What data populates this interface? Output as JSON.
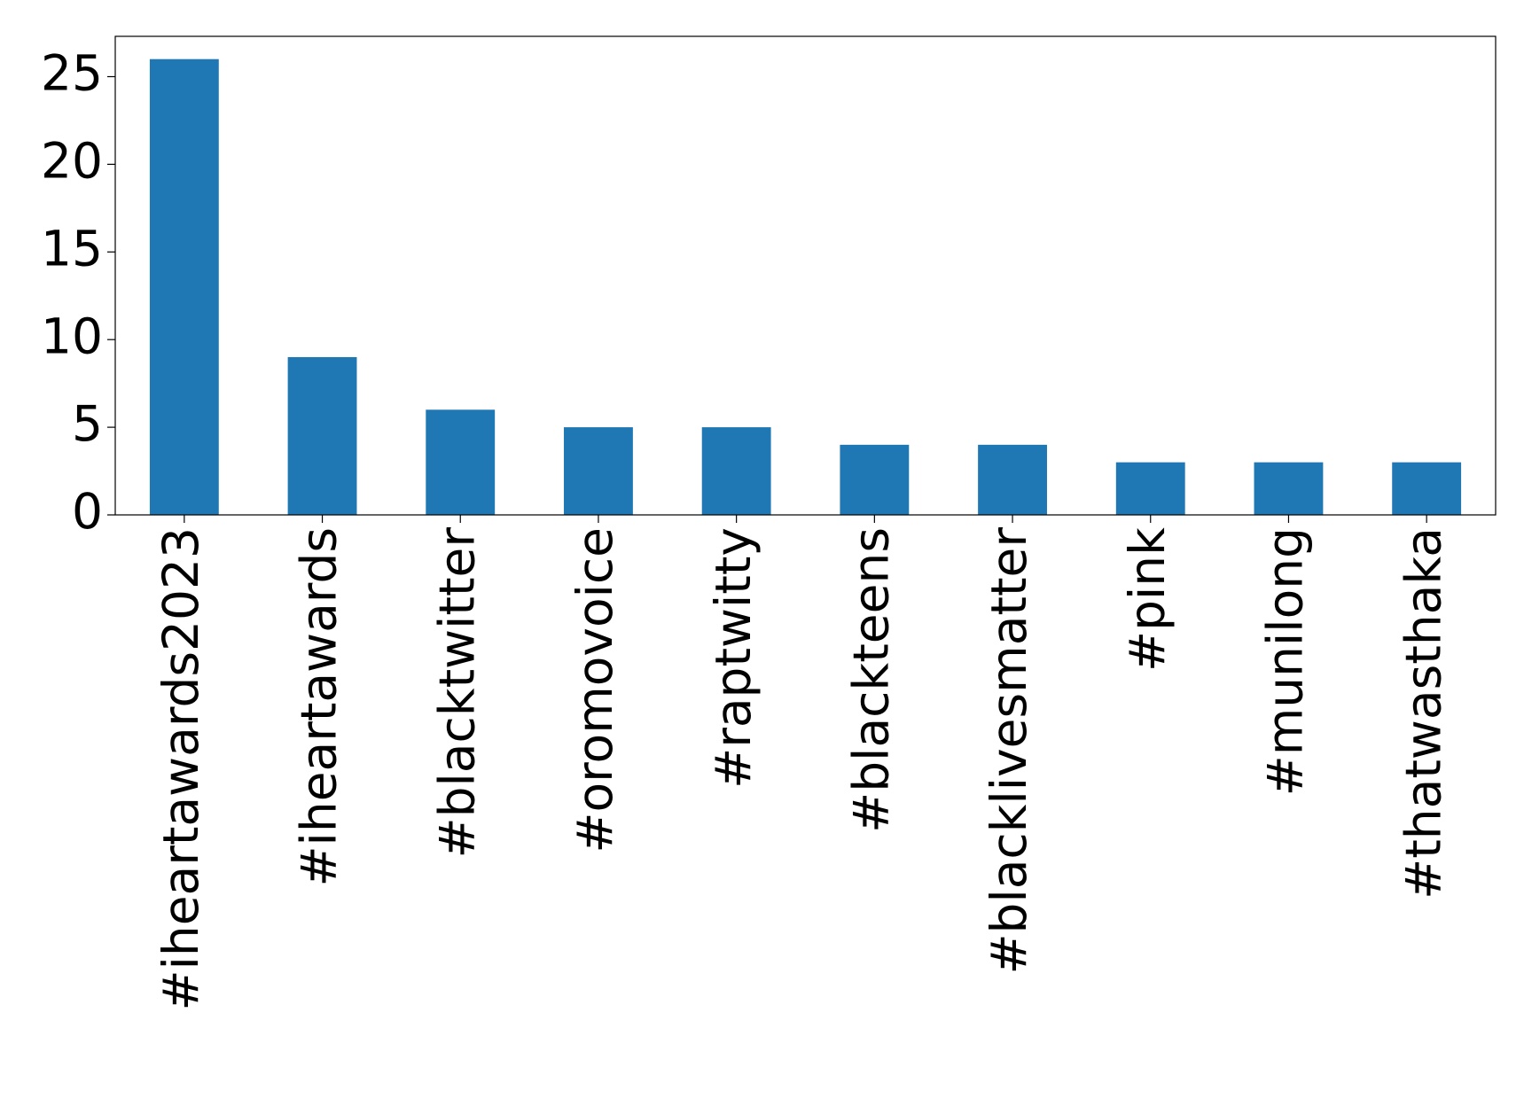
{
  "chart_data": {
    "type": "bar",
    "categories": [
      "#iheartawards2023",
      "#iheartawards",
      "#blacktwitter",
      "#oromovoice",
      "#raptwitty",
      "#blackteens",
      "#blacklivesmatter",
      "#pink",
      "#munilong",
      "#thatwasthaka"
    ],
    "values": [
      26,
      9,
      6,
      5,
      5,
      4,
      4,
      3,
      3,
      3
    ],
    "color": "#1f77b4",
    "ylim": [
      0,
      27.3
    ],
    "yticks": [
      0,
      5,
      10,
      15,
      20,
      25
    ],
    "grid": false
  }
}
